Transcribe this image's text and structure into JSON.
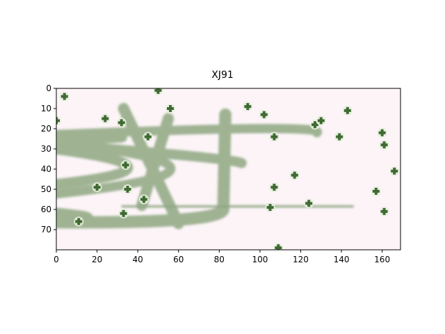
{
  "figure": {
    "title": "XJ91",
    "image_kind": "captcha",
    "background_color": "#fcf4f7",
    "text_color": "#8fa882",
    "noise_color": "#3f6b32"
  },
  "axes": {
    "x_ticks": [
      "0",
      "20",
      "40",
      "60",
      "80",
      "100",
      "120",
      "140",
      "160"
    ],
    "y_ticks": [
      "0",
      "10",
      "20",
      "30",
      "40",
      "50",
      "60",
      "70"
    ],
    "x_range": [
      0,
      169
    ],
    "y_range": [
      80,
      0
    ]
  },
  "captcha": {
    "text": "XJ91",
    "noise_points": [
      [
        50,
        1
      ],
      [
        4,
        4
      ],
      [
        56,
        10
      ],
      [
        94,
        9
      ],
      [
        102,
        13
      ],
      [
        143,
        11
      ],
      [
        0,
        16
      ],
      [
        24,
        15
      ],
      [
        32,
        17
      ],
      [
        127,
        18
      ],
      [
        130,
        16
      ],
      [
        160,
        22
      ],
      [
        45,
        24
      ],
      [
        107,
        24
      ],
      [
        139,
        24
      ],
      [
        161,
        28
      ],
      [
        34,
        38
      ],
      [
        117,
        43
      ],
      [
        166,
        41
      ],
      [
        20,
        49
      ],
      [
        35,
        50
      ],
      [
        107,
        49
      ],
      [
        157,
        51
      ],
      [
        43,
        55
      ],
      [
        124,
        57
      ],
      [
        105,
        59
      ],
      [
        33,
        62
      ],
      [
        161,
        61
      ],
      [
        11,
        66
      ],
      [
        109,
        79
      ]
    ]
  }
}
